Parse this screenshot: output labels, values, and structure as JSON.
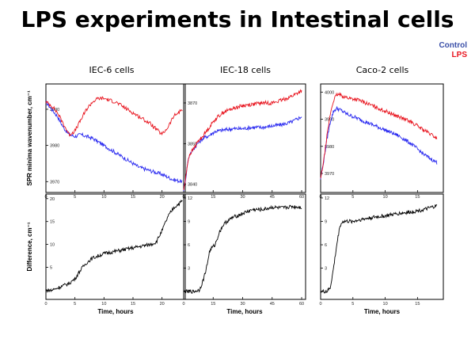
{
  "slide": {
    "title": "LPS experiments in Intestinal cells"
  },
  "legend": {
    "items": [
      {
        "label": "Control",
        "color": "#3a4fa8"
      },
      {
        "label": "LPS",
        "color": "#e8141e"
      }
    ]
  },
  "chart_data": [
    {
      "type": "line",
      "title": "IEC-6 cells",
      "xlabel": "",
      "ylabel": "SPR minima wavenumber, cm⁻¹",
      "xlim": [
        0,
        24
      ],
      "ylim": [
        3967,
        3997
      ],
      "xticks": [
        "0",
        "5",
        "10",
        "15",
        "20"
      ],
      "xtick_values": [
        0,
        5,
        10,
        15,
        20
      ],
      "yticks": [
        "3970",
        "3980",
        "3990"
      ],
      "ytick_values": [
        3970,
        3980,
        3990
      ],
      "series": [
        {
          "role": "control",
          "color": "#2a2af0",
          "x": [
            0,
            1,
            2,
            3,
            4,
            5,
            6,
            8,
            10,
            12,
            14,
            16,
            18,
            20,
            22,
            23.5
          ],
          "y": [
            3992,
            3990,
            3988,
            3985,
            3983,
            3982.5,
            3983,
            3982,
            3980,
            3978,
            3976,
            3974,
            3973,
            3972,
            3970.5,
            3970
          ]
        },
        {
          "role": "lps",
          "color": "#e8141e",
          "x": [
            0,
            1,
            2,
            3,
            4,
            5,
            6,
            7,
            8,
            9,
            10,
            12,
            14,
            16,
            18,
            20,
            21,
            22,
            23.5
          ],
          "y": [
            3992,
            3991,
            3989,
            3986,
            3983,
            3984,
            3987,
            3990,
            3992,
            3993,
            3993,
            3992,
            3990,
            3988,
            3986,
            3983,
            3985,
            3988,
            3990
          ]
        }
      ]
    },
    {
      "type": "line",
      "title": "IEC-18 cells",
      "xlabel": "",
      "ylabel": "",
      "xlim": [
        0,
        62
      ],
      "ylim": [
        3837,
        3877
      ],
      "xticks": [
        "0",
        "15",
        "30",
        "45",
        "60"
      ],
      "xtick_values": [
        0,
        15,
        30,
        45,
        60
      ],
      "yticks": [
        "3840",
        "3855",
        "3870"
      ],
      "ytick_values": [
        3840,
        3855,
        3870
      ],
      "series": [
        {
          "role": "control",
          "color": "#2a2af0",
          "x": [
            0,
            1,
            2,
            3,
            5,
            7,
            10,
            13,
            16,
            20,
            25,
            30,
            35,
            40,
            45,
            50,
            55,
            60
          ],
          "y": [
            3838,
            3842,
            3848,
            3851,
            3853,
            3855,
            3857,
            3858,
            3859.5,
            3860,
            3860.5,
            3860.5,
            3861,
            3861,
            3861.5,
            3862,
            3863,
            3865
          ]
        },
        {
          "role": "lps",
          "color": "#e8141e",
          "x": [
            0,
            1,
            2,
            3,
            5,
            7,
            10,
            13,
            16,
            20,
            25,
            30,
            35,
            40,
            45,
            50,
            55,
            60
          ],
          "y": [
            3838,
            3842,
            3848,
            3851,
            3853,
            3855.5,
            3858,
            3861,
            3864,
            3866.5,
            3868,
            3869,
            3869.5,
            3870,
            3870,
            3871,
            3872.5,
            3874.5
          ]
        }
      ]
    },
    {
      "type": "line",
      "title": "Caco-2 cells",
      "xlabel": "",
      "ylabel": "",
      "xlim": [
        0,
        19
      ],
      "ylim": [
        3963,
        4003
      ],
      "xticks": [
        "0",
        "5",
        "10",
        "15"
      ],
      "xtick_values": [
        0,
        5,
        10,
        15
      ],
      "yticks": [
        "3970",
        "3980",
        "3990",
        "4000"
      ],
      "ytick_values": [
        3970,
        3980,
        3990,
        4000
      ],
      "series": [
        {
          "role": "control",
          "color": "#2a2af0",
          "x": [
            0,
            0.5,
            1,
            1.5,
            2,
            2.5,
            3,
            4,
            5,
            6,
            8,
            10,
            12,
            14,
            16,
            18
          ],
          "y": [
            3968,
            3975,
            3983,
            3989,
            3993,
            3994,
            3993.5,
            3992,
            3991,
            3990,
            3988,
            3986,
            3984,
            3981,
            3977,
            3974
          ]
        },
        {
          "role": "lps",
          "color": "#e8141e",
          "x": [
            0,
            0.5,
            1,
            1.5,
            2,
            2.5,
            3,
            4,
            5,
            6,
            8,
            10,
            12,
            14,
            16,
            18
          ],
          "y": [
            3968,
            3975,
            3984,
            3992,
            3997,
            3999,
            3999,
            3998,
            3997.5,
            3997,
            3995,
            3993,
            3991,
            3989,
            3986,
            3983
          ]
        }
      ]
    },
    {
      "type": "line",
      "title": "",
      "xlabel": "Time, hours",
      "ylabel": "Difference, cm⁻¹",
      "xlim": [
        0,
        24
      ],
      "ylim": [
        -2,
        21
      ],
      "xticks": [
        "0",
        "5",
        "10",
        "15",
        "20"
      ],
      "xtick_values": [
        0,
        5,
        10,
        15,
        20
      ],
      "yticks": [
        "0",
        "5",
        "10",
        "15",
        "20"
      ],
      "ytick_values": [
        0,
        5,
        10,
        15,
        20
      ],
      "series": [
        {
          "role": "difference",
          "color": "#000000",
          "x": [
            0,
            1,
            2,
            3,
            4,
            5,
            6,
            7,
            8,
            9,
            10,
            12,
            14,
            16,
            18,
            19,
            20,
            21,
            22,
            23.5
          ],
          "y": [
            0,
            0,
            0.5,
            1,
            1.5,
            2.5,
            4.5,
            6,
            7,
            7.5,
            8,
            8.5,
            9,
            9.5,
            10,
            10.5,
            13,
            16,
            18,
            19.5
          ]
        }
      ]
    },
    {
      "type": "line",
      "title": "",
      "xlabel": "Time, hours",
      "ylabel": "",
      "xlim": [
        0,
        62
      ],
      "ylim": [
        -1,
        12.5
      ],
      "xticks": [
        "0",
        "15",
        "30",
        "45",
        "60"
      ],
      "xtick_values": [
        0,
        15,
        30,
        45,
        60
      ],
      "yticks": [
        "0",
        "3",
        "6",
        "9",
        "12"
      ],
      "ytick_values": [
        0,
        3,
        6,
        9,
        12
      ],
      "series": [
        {
          "role": "difference",
          "color": "#000000",
          "x": [
            0,
            5,
            8,
            10,
            12,
            13,
            14,
            16,
            18,
            20,
            22,
            25,
            30,
            35,
            40,
            45,
            50,
            55,
            60
          ],
          "y": [
            0,
            0,
            0.2,
            1.5,
            3.5,
            5,
            5.5,
            6,
            7.5,
            8.5,
            9,
            9.5,
            10,
            10.5,
            10.5,
            10.8,
            10.7,
            10.9,
            10.8
          ]
        }
      ]
    },
    {
      "type": "line",
      "title": "",
      "xlabel": "Time, hours",
      "ylabel": "",
      "xlim": [
        0,
        19
      ],
      "ylim": [
        -1,
        12.5
      ],
      "xticks": [
        "0",
        "5",
        "10",
        "15"
      ],
      "xtick_values": [
        0,
        5,
        10,
        15
      ],
      "yticks": [
        "0",
        "3",
        "6",
        "9",
        "12"
      ],
      "ytick_values": [
        0,
        3,
        6,
        9,
        12
      ],
      "series": [
        {
          "role": "difference",
          "color": "#000000",
          "x": [
            0,
            1,
            1.5,
            2,
            2.5,
            3,
            3.5,
            4,
            5,
            6,
            8,
            10,
            12,
            14,
            16,
            18
          ],
          "y": [
            0,
            0,
            0.5,
            3,
            6,
            8.5,
            9,
            9,
            9,
            9.2,
            9.5,
            9.7,
            10,
            10.2,
            10.5,
            11
          ]
        }
      ]
    }
  ]
}
